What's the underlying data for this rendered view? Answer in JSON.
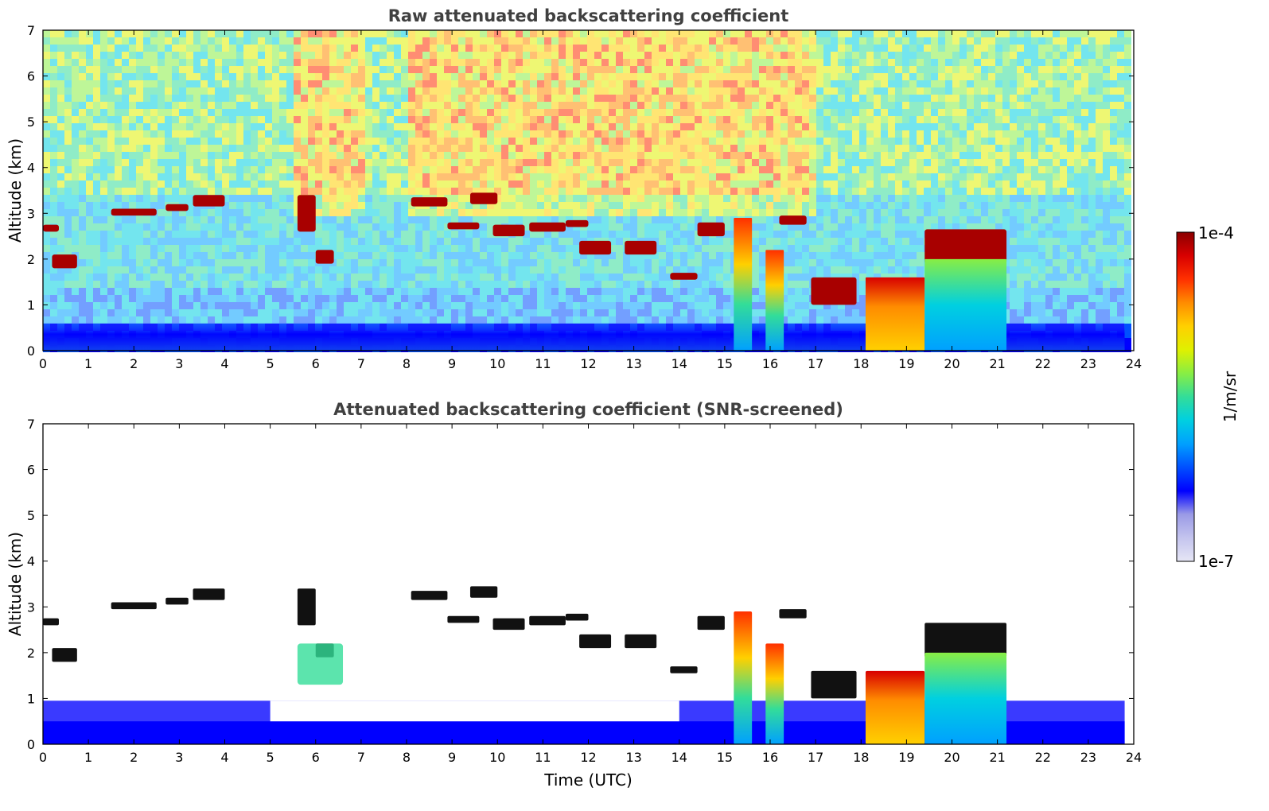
{
  "chart_data": [
    {
      "type": "heatmap",
      "title": "Raw attenuated backscattering coefficient",
      "xlabel": "",
      "ylabel": "Altitude (km)",
      "xlim": [
        0,
        24
      ],
      "ylim": [
        0,
        7
      ],
      "xticks": [
        "0",
        "1",
        "2",
        "3",
        "4",
        "5",
        "6",
        "7",
        "8",
        "9",
        "10",
        "11",
        "12",
        "13",
        "14",
        "15",
        "16",
        "17",
        "18",
        "19",
        "20",
        "21",
        "22",
        "23",
        "24"
      ],
      "yticks": [
        "0",
        "1",
        "2",
        "3",
        "4",
        "5",
        "6",
        "7"
      ],
      "grid": false,
      "data_end_time": 23.8,
      "features": [
        {
          "kind": "cloud_layer",
          "t": [
            0.0,
            0.35
          ],
          "z": [
            2.6,
            2.75
          ]
        },
        {
          "kind": "cloud_layer",
          "t": [
            0.2,
            0.75
          ],
          "z": [
            1.8,
            2.1
          ]
        },
        {
          "kind": "cloud_layer",
          "t": [
            1.5,
            2.5
          ],
          "z": [
            2.95,
            3.1
          ]
        },
        {
          "kind": "cloud_layer",
          "t": [
            2.7,
            3.2
          ],
          "z": [
            3.05,
            3.2
          ]
        },
        {
          "kind": "cloud_layer",
          "t": [
            3.3,
            4.0
          ],
          "z": [
            3.15,
            3.4
          ]
        },
        {
          "kind": "cloud_layer",
          "t": [
            5.6,
            6.0
          ],
          "z": [
            2.6,
            3.4
          ]
        },
        {
          "kind": "cloud_layer",
          "t": [
            6.0,
            6.4
          ],
          "z": [
            1.9,
            2.2
          ]
        },
        {
          "kind": "cloud_layer",
          "t": [
            8.1,
            8.9
          ],
          "z": [
            3.15,
            3.35
          ]
        },
        {
          "kind": "cloud_layer",
          "t": [
            8.9,
            9.6
          ],
          "z": [
            2.65,
            2.8
          ]
        },
        {
          "kind": "cloud_layer",
          "t": [
            9.4,
            10.0
          ],
          "z": [
            3.2,
            3.45
          ]
        },
        {
          "kind": "cloud_layer",
          "t": [
            9.9,
            10.6
          ],
          "z": [
            2.5,
            2.75
          ]
        },
        {
          "kind": "cloud_layer",
          "t": [
            10.7,
            11.5
          ],
          "z": [
            2.6,
            2.8
          ]
        },
        {
          "kind": "cloud_layer",
          "t": [
            11.5,
            12.0
          ],
          "z": [
            2.7,
            2.85
          ]
        },
        {
          "kind": "cloud_layer",
          "t": [
            11.8,
            12.5
          ],
          "z": [
            2.1,
            2.4
          ]
        },
        {
          "kind": "cloud_layer",
          "t": [
            12.8,
            13.5
          ],
          "z": [
            2.1,
            2.4
          ]
        },
        {
          "kind": "cloud_layer",
          "t": [
            13.8,
            14.4
          ],
          "z": [
            1.55,
            1.7
          ]
        },
        {
          "kind": "cloud_layer",
          "t": [
            14.4,
            15.0
          ],
          "z": [
            2.5,
            2.8
          ]
        },
        {
          "kind": "cloud_layer",
          "t": [
            16.2,
            16.8
          ],
          "z": [
            2.75,
            2.95
          ]
        },
        {
          "kind": "cloud_layer",
          "t": [
            16.9,
            17.9
          ],
          "z": [
            1.0,
            1.6
          ]
        },
        {
          "kind": "cloud_layer",
          "t": [
            19.4,
            21.2
          ],
          "z": [
            1.9,
            2.65
          ]
        },
        {
          "kind": "convective_column",
          "t": [
            15.2,
            15.6
          ],
          "z": [
            0,
            2.9
          ]
        },
        {
          "kind": "convective_column",
          "t": [
            15.9,
            16.3
          ],
          "z": [
            0,
            2.2
          ]
        },
        {
          "kind": "precipitation",
          "t": [
            18.1,
            19.4
          ],
          "z": [
            0,
            1.6
          ]
        },
        {
          "kind": "precipitation",
          "t": [
            19.4,
            21.2
          ],
          "z": [
            0,
            2.0
          ]
        },
        {
          "kind": "boundary_layer",
          "t": [
            0,
            23.8
          ],
          "z": [
            0,
            0.6
          ]
        }
      ]
    },
    {
      "type": "heatmap",
      "title": "Attenuated backscattering coefficient (SNR-screened)",
      "xlabel": "Time (UTC)",
      "ylabel": "Altitude (km)",
      "xlim": [
        0,
        24
      ],
      "ylim": [
        0,
        7
      ],
      "xticks": [
        "0",
        "1",
        "2",
        "3",
        "4",
        "5",
        "6",
        "7",
        "8",
        "9",
        "10",
        "11",
        "12",
        "13",
        "14",
        "15",
        "16",
        "17",
        "18",
        "19",
        "20",
        "21",
        "22",
        "23",
        "24"
      ],
      "yticks": [
        "0",
        "1",
        "2",
        "3",
        "4",
        "5",
        "6",
        "7"
      ],
      "grid": false,
      "data_end_time": 23.8
    }
  ],
  "colorbar": {
    "label": "1/m/sr",
    "max_label": "1e-4",
    "min_label": "1e-7",
    "scale": "log",
    "range": [
      1e-07,
      0.0001
    ],
    "colormap": [
      "#e6e6f5",
      "#c4c4ee",
      "#9a9ae6",
      "#0000ff",
      "#0050ff",
      "#00a0ff",
      "#00d0e0",
      "#33dd99",
      "#88ee44",
      "#e0f000",
      "#ffd000",
      "#ff8c00",
      "#ff3000",
      "#d80000",
      "#8b0000"
    ]
  }
}
